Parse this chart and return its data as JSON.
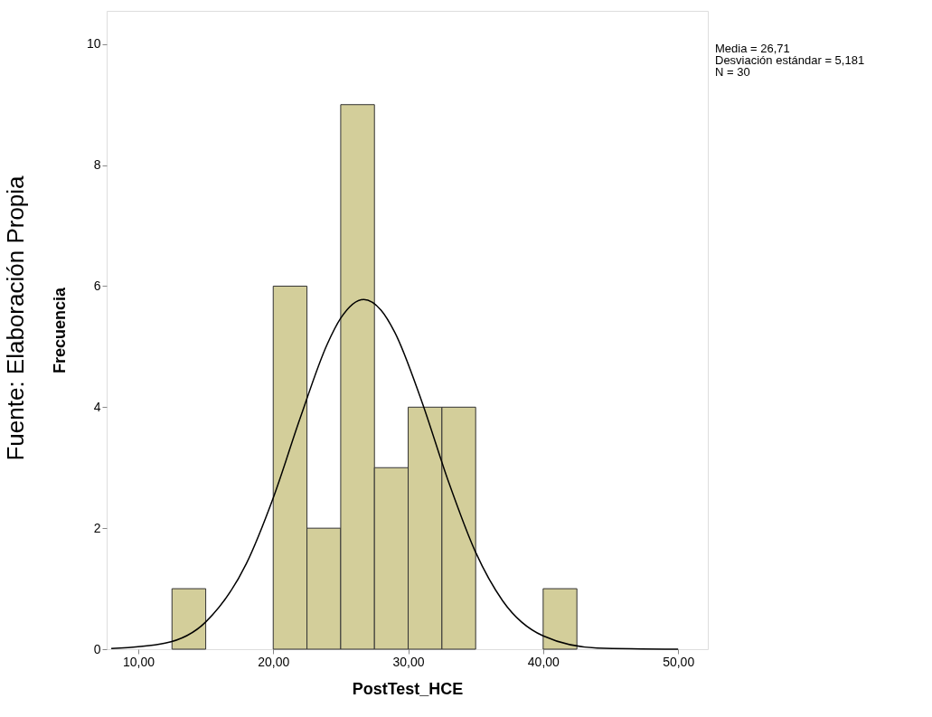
{
  "chart_data": {
    "type": "histogram",
    "xlabel": "PostTest_HCE",
    "ylabel": "Frecuencia",
    "bins": [
      12.5,
      15,
      17.5,
      20,
      22.5,
      25,
      27.5,
      30,
      32.5,
      35,
      37.5,
      40,
      42.5
    ],
    "values": [
      1,
      0,
      0,
      6,
      2,
      9,
      3,
      4,
      4,
      0,
      0,
      1
    ],
    "color": "#d3ce9a",
    "series": [
      {
        "type": "line",
        "color": "#000000",
        "x": [
          8,
          12,
          15,
          18,
          20,
          22,
          24,
          25,
          26.71,
          28,
          29,
          31,
          33,
          35,
          37,
          40,
          44,
          50
        ],
        "values": [
          0.01,
          0.1,
          0.45,
          1.41,
          2.5,
          3.82,
          5.04,
          5.47,
          5.78,
          5.6,
          5.24,
          4.1,
          2.76,
          1.6,
          0.8,
          0.22,
          0.02,
          0
        ]
      }
    ],
    "xlim": [
      7.66,
      52.2
    ],
    "ylim": [
      0,
      10.55
    ],
    "xticks": [
      {
        "value": 10,
        "label": "10,00"
      },
      {
        "value": 20,
        "label": "20,00"
      },
      {
        "value": 30,
        "label": "30,00"
      },
      {
        "value": 40,
        "label": "40,00"
      },
      {
        "value": 50,
        "label": "50,00"
      }
    ],
    "yticks": [
      0,
      2,
      4,
      6,
      8,
      10
    ],
    "grid": false,
    "annotations": [
      "Media = 26,71",
      "Desviación estándar = 5,181",
      "N = 30",
      "Fuente: Elaboración Propia"
    ]
  }
}
